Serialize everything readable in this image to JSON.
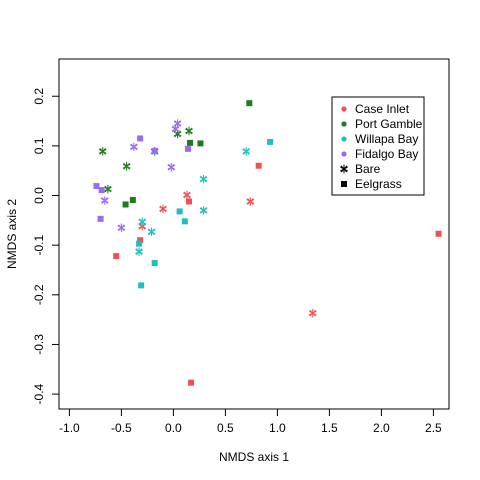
{
  "chart_data": {
    "type": "scatter",
    "xlabel": "NMDS axis 1",
    "ylabel": "NMDS axis 2",
    "xlim": [
      -1.1,
      2.65
    ],
    "ylim": [
      -0.43,
      0.275
    ],
    "x_ticks": [
      -1.0,
      -0.5,
      0.0,
      0.5,
      1.0,
      1.5,
      2.0,
      2.5
    ],
    "x_tick_labels": [
      "-1.0",
      "-0.5",
      "0.0",
      "0.5",
      "1.0",
      "1.5",
      "2.0",
      "2.5"
    ],
    "y_ticks": [
      -0.4,
      -0.3,
      -0.2,
      -0.1,
      0.0,
      0.1,
      0.2
    ],
    "y_tick_labels": [
      "-0.4",
      "-0.3",
      "-0.2",
      "-0.1",
      "0.0",
      "0.1",
      "0.2"
    ],
    "grid": false,
    "legend_position": "top-right",
    "groups": [
      {
        "name": "Case Inlet",
        "color": "#F04F55"
      },
      {
        "name": "Port Gamble",
        "color": "#1B7D1B"
      },
      {
        "name": "Willapa Bay",
        "color": "#1CBFC2"
      },
      {
        "name": "Fidalgo Bay",
        "color": "#9B6BF2"
      }
    ],
    "markers": [
      {
        "name": "Bare",
        "shape": "asterisk"
      },
      {
        "name": "Eelgrass",
        "shape": "square"
      }
    ],
    "points": [
      {
        "group": "Case Inlet",
        "marker": "Eelgrass",
        "x": 0.82,
        "y": 0.06
      },
      {
        "group": "Case Inlet",
        "marker": "Eelgrass",
        "x": 2.55,
        "y": -0.077
      },
      {
        "group": "Case Inlet",
        "marker": "Eelgrass",
        "x": 0.15,
        "y": -0.012
      },
      {
        "group": "Case Inlet",
        "marker": "Eelgrass",
        "x": -0.55,
        "y": -0.122
      },
      {
        "group": "Case Inlet",
        "marker": "Eelgrass",
        "x": -0.32,
        "y": -0.09
      },
      {
        "group": "Case Inlet",
        "marker": "Eelgrass",
        "x": 0.17,
        "y": -0.377
      },
      {
        "group": "Case Inlet",
        "marker": "Bare",
        "x": 0.74,
        "y": -0.012
      },
      {
        "group": "Case Inlet",
        "marker": "Bare",
        "x": 1.34,
        "y": -0.237
      },
      {
        "group": "Case Inlet",
        "marker": "Bare",
        "x": 0.13,
        "y": 0.001
      },
      {
        "group": "Case Inlet",
        "marker": "Bare",
        "x": -0.1,
        "y": -0.027
      },
      {
        "group": "Case Inlet",
        "marker": "Bare",
        "x": -0.3,
        "y": -0.062
      },
      {
        "group": "Port Gamble",
        "marker": "Eelgrass",
        "x": 0.73,
        "y": 0.186
      },
      {
        "group": "Port Gamble",
        "marker": "Eelgrass",
        "x": 0.16,
        "y": 0.106
      },
      {
        "group": "Port Gamble",
        "marker": "Eelgrass",
        "x": 0.26,
        "y": 0.105
      },
      {
        "group": "Port Gamble",
        "marker": "Eelgrass",
        "x": -0.39,
        "y": -0.009
      },
      {
        "group": "Port Gamble",
        "marker": "Eelgrass",
        "x": -0.46,
        "y": -0.018
      },
      {
        "group": "Port Gamble",
        "marker": "Bare",
        "x": -0.68,
        "y": 0.089
      },
      {
        "group": "Port Gamble",
        "marker": "Bare",
        "x": -0.63,
        "y": 0.013
      },
      {
        "group": "Port Gamble",
        "marker": "Bare",
        "x": -0.45,
        "y": 0.059
      },
      {
        "group": "Port Gamble",
        "marker": "Bare",
        "x": -0.18,
        "y": 0.089
      },
      {
        "group": "Port Gamble",
        "marker": "Bare",
        "x": 0.04,
        "y": 0.124
      },
      {
        "group": "Port Gamble",
        "marker": "Bare",
        "x": 0.15,
        "y": 0.13
      },
      {
        "group": "Willapa Bay",
        "marker": "Eelgrass",
        "x": 0.93,
        "y": 0.108
      },
      {
        "group": "Willapa Bay",
        "marker": "Eelgrass",
        "x": 0.06,
        "y": -0.032
      },
      {
        "group": "Willapa Bay",
        "marker": "Eelgrass",
        "x": 0.11,
        "y": -0.052
      },
      {
        "group": "Willapa Bay",
        "marker": "Eelgrass",
        "x": -0.33,
        "y": -0.097
      },
      {
        "group": "Willapa Bay",
        "marker": "Eelgrass",
        "x": -0.18,
        "y": -0.136
      },
      {
        "group": "Willapa Bay",
        "marker": "Eelgrass",
        "x": -0.31,
        "y": -0.181
      },
      {
        "group": "Willapa Bay",
        "marker": "Bare",
        "x": 0.7,
        "y": 0.089
      },
      {
        "group": "Willapa Bay",
        "marker": "Bare",
        "x": 0.29,
        "y": 0.033
      },
      {
        "group": "Willapa Bay",
        "marker": "Bare",
        "x": 0.29,
        "y": -0.03
      },
      {
        "group": "Willapa Bay",
        "marker": "Bare",
        "x": -0.3,
        "y": -0.053
      },
      {
        "group": "Willapa Bay",
        "marker": "Bare",
        "x": -0.21,
        "y": -0.073
      },
      {
        "group": "Willapa Bay",
        "marker": "Bare",
        "x": -0.33,
        "y": -0.113
      },
      {
        "group": "Fidalgo Bay",
        "marker": "Eelgrass",
        "x": -0.32,
        "y": 0.115
      },
      {
        "group": "Fidalgo Bay",
        "marker": "Eelgrass",
        "x": -0.18,
        "y": 0.09
      },
      {
        "group": "Fidalgo Bay",
        "marker": "Eelgrass",
        "x": 0.14,
        "y": 0.094
      },
      {
        "group": "Fidalgo Bay",
        "marker": "Eelgrass",
        "x": -0.74,
        "y": 0.019
      },
      {
        "group": "Fidalgo Bay",
        "marker": "Eelgrass",
        "x": -0.69,
        "y": 0.011
      },
      {
        "group": "Fidalgo Bay",
        "marker": "Eelgrass",
        "x": -0.7,
        "y": -0.047
      },
      {
        "group": "Fidalgo Bay",
        "marker": "Bare",
        "x": 0.04,
        "y": 0.145
      },
      {
        "group": "Fidalgo Bay",
        "marker": "Bare",
        "x": 0.02,
        "y": 0.134
      },
      {
        "group": "Fidalgo Bay",
        "marker": "Bare",
        "x": -0.38,
        "y": 0.098
      },
      {
        "group": "Fidalgo Bay",
        "marker": "Bare",
        "x": -0.02,
        "y": 0.057
      },
      {
        "group": "Fidalgo Bay",
        "marker": "Bare",
        "x": -0.66,
        "y": -0.01
      },
      {
        "group": "Fidalgo Bay",
        "marker": "Bare",
        "x": -0.5,
        "y": -0.065
      }
    ]
  }
}
